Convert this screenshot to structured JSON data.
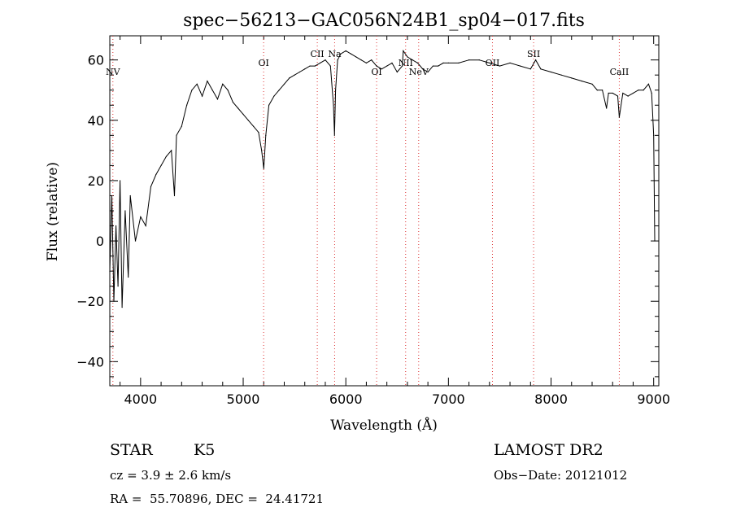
{
  "chart_data": {
    "type": "line",
    "title": "spec−56213−GAC056N24B1_sp04−017.fits",
    "xlabel": "Wavelength (Å)",
    "ylabel": "Flux (relative)",
    "xlim": [
      3700,
      9050
    ],
    "ylim": [
      -48,
      68
    ],
    "x_ticks": [
      4000,
      5000,
      6000,
      7000,
      8000,
      9000
    ],
    "y_ticks": [
      -40,
      -20,
      0,
      20,
      40,
      60
    ],
    "grid": false,
    "series": [
      {
        "x": [
          3700,
          3720,
          3740,
          3760,
          3780,
          3800,
          3820,
          3850,
          3880,
          3900,
          3950,
          4000,
          4050,
          4100,
          4150,
          4200,
          4250,
          4300,
          4330,
          4350,
          4400,
          4450,
          4500,
          4550,
          4600,
          4650,
          4700,
          4750,
          4800,
          4850,
          4900,
          4950,
          5000,
          5050,
          5100,
          5150,
          5180,
          5200,
          5220,
          5250,
          5300,
          5350,
          5400,
          5450,
          5500,
          5550,
          5600,
          5650,
          5700,
          5750,
          5800,
          5850,
          5880,
          5890,
          5900,
          5920,
          5950,
          6000,
          6050,
          6100,
          6150,
          6200,
          6250,
          6300,
          6350,
          6400,
          6450,
          6500,
          6550,
          6560,
          6600,
          6650,
          6700,
          6750,
          6800,
          6850,
          6900,
          6950,
          7000,
          7100,
          7200,
          7300,
          7400,
          7500,
          7600,
          7700,
          7800,
          7850,
          7900,
          8000,
          8100,
          8200,
          8300,
          8400,
          8450,
          8500,
          8540,
          8560,
          8600,
          8650,
          8665,
          8700,
          8750,
          8800,
          8850,
          8900,
          8950,
          8980,
          9000,
          9010
        ],
        "y": [
          -10,
          15,
          -20,
          5,
          -15,
          20,
          -22,
          10,
          -12,
          15,
          0,
          8,
          5,
          18,
          22,
          25,
          28,
          30,
          15,
          35,
          38,
          45,
          50,
          52,
          48,
          53,
          50,
          47,
          52,
          50,
          46,
          44,
          42,
          40,
          38,
          36,
          30,
          24,
          35,
          45,
          48,
          50,
          52,
          54,
          55,
          56,
          57,
          58,
          58,
          59,
          60,
          58,
          45,
          35,
          50,
          60,
          62,
          63,
          62,
          61,
          60,
          59,
          60,
          58,
          57,
          58,
          59,
          56,
          58,
          63,
          61,
          60,
          59,
          57,
          56,
          58,
          58,
          59,
          59,
          59,
          60,
          60,
          59,
          58,
          59,
          58,
          57,
          60,
          57,
          56,
          55,
          54,
          53,
          52,
          50,
          50,
          44,
          49,
          49,
          48,
          41,
          49,
          48,
          49,
          50,
          50,
          52,
          49,
          35,
          0
        ]
      }
    ],
    "line_markers": [
      {
        "label": "NV",
        "x": 3730,
        "y": 55
      },
      {
        "label": "OI",
        "x": 5199,
        "y": 58
      },
      {
        "label": "CII",
        "x": 5722,
        "y": 61
      },
      {
        "label": "Na",
        "x": 5891,
        "y": 61
      },
      {
        "label": "OI",
        "x": 6300,
        "y": 55
      },
      {
        "label": "NII",
        "x": 6583,
        "y": 58
      },
      {
        "label": "NeV",
        "x": 6710,
        "y": 55
      },
      {
        "label": "OII",
        "x": 7429,
        "y": 58
      },
      {
        "label": "SII",
        "x": 7830,
        "y": 61
      },
      {
        "label": "CaII",
        "x": 8665,
        "y": 55
      }
    ]
  },
  "info": {
    "object_type": "STAR",
    "subclass": "K5",
    "survey": "LAMOST DR2",
    "cz": "cz = 3.9 ± 2.6 km/s",
    "obs_date": "Obs−Date: 20121012",
    "coords": "RA =  55.70896, DEC =  24.41721"
  }
}
